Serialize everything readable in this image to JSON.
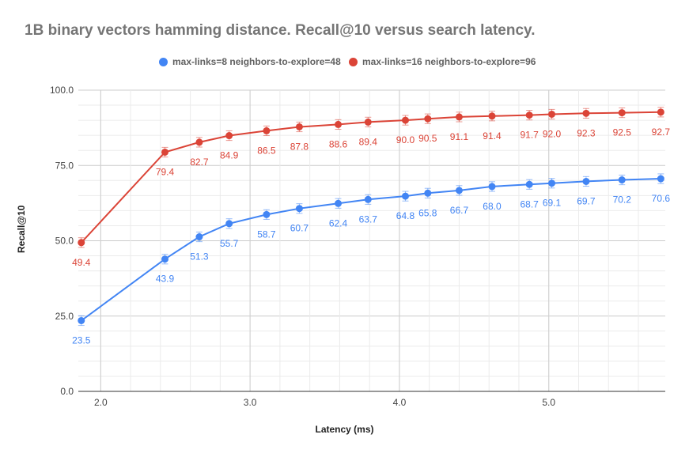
{
  "chart_data": {
    "type": "line",
    "title": "1B binary vectors hamming distance. Recall@10 versus search latency.",
    "xlabel": "Latency (ms)",
    "ylabel": "Recall@10",
    "xlim": [
      1.85,
      5.78
    ],
    "ylim": [
      0,
      100
    ],
    "xticks": [
      2.0,
      3.0,
      4.0,
      5.0
    ],
    "yticks": [
      0.0,
      25.0,
      50.0,
      75.0,
      100.0
    ],
    "xtick_labels": [
      "2.0",
      "3.0",
      "4.0",
      "5.0"
    ],
    "ytick_labels": [
      "0.0",
      "25.0",
      "50.0",
      "75.0",
      "100.0"
    ],
    "grid": true,
    "legend_position": "top",
    "series": [
      {
        "name": "max-links=8 neighbors-to-explore=48",
        "color": "#4285f4",
        "x": [
          1.87,
          2.43,
          2.66,
          2.86,
          3.11,
          3.33,
          3.59,
          3.79,
          4.04,
          4.19,
          4.4,
          4.62,
          4.87,
          5.02,
          5.25,
          5.49,
          5.75
        ],
        "y": [
          23.5,
          43.9,
          51.3,
          55.7,
          58.7,
          60.7,
          62.4,
          63.7,
          64.8,
          65.8,
          66.7,
          68.0,
          68.7,
          69.1,
          69.7,
          70.2,
          70.6
        ],
        "labels": [
          "23.5",
          "43.9",
          "51.3",
          "55.7",
          "58.7",
          "60.7",
          "62.4",
          "63.7",
          "64.8",
          "65.8",
          "66.7",
          "68.0",
          "68.7",
          "69.1",
          "69.7",
          "70.2",
          "70.6"
        ],
        "error": 1.6
      },
      {
        "name": "max-links=16 neighbors-to-explore=96",
        "color": "#db4437",
        "x": [
          1.87,
          2.43,
          2.66,
          2.86,
          3.11,
          3.33,
          3.59,
          3.79,
          4.04,
          4.19,
          4.4,
          4.62,
          4.87,
          5.02,
          5.25,
          5.49,
          5.75
        ],
        "y": [
          49.4,
          79.4,
          82.7,
          84.9,
          86.5,
          87.8,
          88.6,
          89.4,
          90.0,
          90.5,
          91.1,
          91.4,
          91.7,
          92.0,
          92.3,
          92.5,
          92.7
        ],
        "labels": [
          "49.4",
          "79.4",
          "82.7",
          "84.9",
          "86.5",
          "87.8",
          "88.6",
          "89.4",
          "90.0",
          "90.5",
          "91.1",
          "91.4",
          "91.7",
          "92.0",
          "92.3",
          "92.5",
          "92.7"
        ],
        "error": 1.6
      }
    ]
  }
}
